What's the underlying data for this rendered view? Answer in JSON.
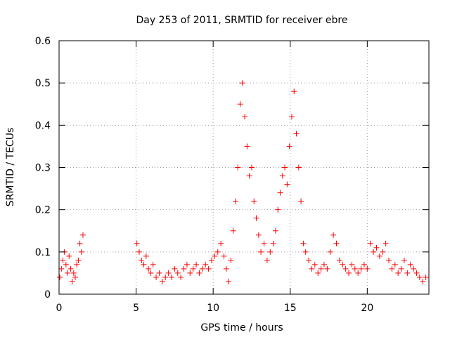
{
  "chart_data": {
    "type": "scatter",
    "title": "Day 253 of 2011, SRMTID for receiver ebre",
    "xlabel": "GPS time / hours",
    "ylabel": "SRMTID / TECUs",
    "xlim": [
      0,
      24
    ],
    "ylim": [
      0,
      0.6
    ],
    "xticks": [
      0,
      5,
      10,
      15,
      20
    ],
    "xtick_labels": [
      "0",
      "5",
      "10",
      "15",
      "20"
    ],
    "yticks": [
      0,
      0.1,
      0.2,
      0.3,
      0.4,
      0.5,
      0.6
    ],
    "ytick_labels": [
      "0",
      "0.1",
      "0.2",
      "0.3",
      "0.4",
      "0.5",
      "0.6"
    ],
    "grid": true,
    "legend": "none",
    "marker": "+",
    "marker_color": "#ff0000",
    "series": [
      {
        "name": "SRMTID",
        "x": [
          0.05,
          0.15,
          0.25,
          0.35,
          0.45,
          0.55,
          0.65,
          0.75,
          0.85,
          0.95,
          1.05,
          1.15,
          1.25,
          1.35,
          1.45,
          1.55,
          5.05,
          5.2,
          5.35,
          5.5,
          5.65,
          5.8,
          5.95,
          6.1,
          6.3,
          6.5,
          6.7,
          6.9,
          7.1,
          7.3,
          7.5,
          7.7,
          7.9,
          8.1,
          8.3,
          8.5,
          8.7,
          8.9,
          9.1,
          9.3,
          9.5,
          9.7,
          9.9,
          10.1,
          10.3,
          10.5,
          10.7,
          10.85,
          11.0,
          11.15,
          11.3,
          11.45,
          11.6,
          11.75,
          11.9,
          12.05,
          12.2,
          12.35,
          12.5,
          12.65,
          12.8,
          12.95,
          13.1,
          13.3,
          13.5,
          13.7,
          13.9,
          14.05,
          14.2,
          14.35,
          14.5,
          14.65,
          14.8,
          14.95,
          15.1,
          15.25,
          15.4,
          15.55,
          15.7,
          15.85,
          16.0,
          16.2,
          16.4,
          16.6,
          16.8,
          17.0,
          17.2,
          17.4,
          17.6,
          17.8,
          18.0,
          18.2,
          18.4,
          18.6,
          18.8,
          19.0,
          19.2,
          19.4,
          19.6,
          19.8,
          20.0,
          20.2,
          20.4,
          20.6,
          20.8,
          21.0,
          21.2,
          21.4,
          21.6,
          21.8,
          22.0,
          22.2,
          22.4,
          22.6,
          22.8,
          23.0,
          23.2,
          23.4,
          23.6,
          23.8
        ],
        "y": [
          0.04,
          0.06,
          0.08,
          0.1,
          0.07,
          0.05,
          0.09,
          0.06,
          0.03,
          0.05,
          0.04,
          0.07,
          0.08,
          0.12,
          0.1,
          0.14,
          0.12,
          0.1,
          0.08,
          0.07,
          0.09,
          0.06,
          0.05,
          0.07,
          0.04,
          0.05,
          0.03,
          0.04,
          0.05,
          0.04,
          0.06,
          0.05,
          0.04,
          0.06,
          0.07,
          0.05,
          0.06,
          0.07,
          0.05,
          0.06,
          0.07,
          0.06,
          0.08,
          0.09,
          0.1,
          0.12,
          0.09,
          0.06,
          0.03,
          0.08,
          0.15,
          0.22,
          0.3,
          0.45,
          0.5,
          0.42,
          0.35,
          0.28,
          0.3,
          0.22,
          0.18,
          0.14,
          0.1,
          0.12,
          0.08,
          0.1,
          0.12,
          0.15,
          0.2,
          0.24,
          0.28,
          0.3,
          0.26,
          0.35,
          0.42,
          0.48,
          0.38,
          0.3,
          0.22,
          0.12,
          0.1,
          0.08,
          0.06,
          0.07,
          0.05,
          0.06,
          0.07,
          0.06,
          0.1,
          0.14,
          0.12,
          0.08,
          0.07,
          0.06,
          0.05,
          0.07,
          0.06,
          0.05,
          0.06,
          0.07,
          0.06,
          0.12,
          0.1,
          0.11,
          0.09,
          0.1,
          0.12,
          0.08,
          0.06,
          0.07,
          0.05,
          0.06,
          0.08,
          0.05,
          0.07,
          0.06,
          0.05,
          0.04,
          0.03,
          0.04
        ]
      }
    ]
  }
}
